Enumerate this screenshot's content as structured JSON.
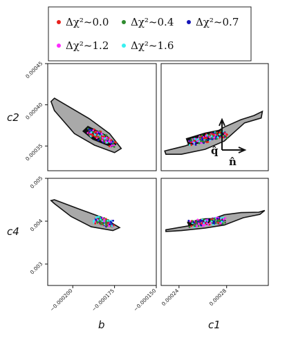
{
  "chart_data": {
    "type": "scatter",
    "legend": {
      "placement": "top",
      "entries": [
        {
          "label": "Δχ²~0.0",
          "color": "#e8211c"
        },
        {
          "label": "Δχ²~0.4",
          "color": "#2e8b2e"
        },
        {
          "label": "Δχ²~0.7",
          "color": "#1414b8"
        },
        {
          "label": "Δχ²~1.2",
          "color": "#ff2bff"
        },
        {
          "label": "Δχ²~1.6",
          "color": "#38f0f0"
        }
      ]
    },
    "axes": {
      "x_b": {
        "label": "b",
        "range": [
          -0.000215,
          -0.00015
        ],
        "ticks": [
          {
            "v": -0.0002,
            "t": "−0.000200"
          },
          {
            "v": -0.000175,
            "t": "−0.000175"
          },
          {
            "v": -0.00015,
            "t": "−0.000150"
          }
        ]
      },
      "x_c1": {
        "label": "c1",
        "range": [
          0.000225,
          0.000315
        ],
        "ticks": [
          {
            "v": 0.00024,
            "t": "0.00024"
          },
          {
            "v": 0.00028,
            "t": "0.00028"
          }
        ]
      },
      "y_c2": {
        "label": "c2",
        "range": [
          0.00032,
          0.00045
        ],
        "ticks": [
          {
            "v": 0.00035,
            "t": "0.00035"
          },
          {
            "v": 0.0004,
            "t": "0.00040"
          },
          {
            "v": 0.00045,
            "t": "0.00045"
          }
        ]
      },
      "y_c4": {
        "label": "c4",
        "range": [
          0.0025,
          0.005
        ],
        "ticks": [
          {
            "v": 0.003,
            "t": "0.003"
          },
          {
            "v": 0.004,
            "t": "0.004"
          },
          {
            "v": 0.005,
            "t": "0.005"
          }
        ]
      }
    },
    "panels": [
      {
        "id": "b_c2",
        "x": "x_b",
        "y": "y_c2",
        "outer": [
          [
            -0.000211,
            0.000408
          ],
          [
            -0.00019,
            0.000383
          ],
          [
            -0.000178,
            0.000365
          ],
          [
            -0.000171,
            0.000347
          ],
          [
            -0.000175,
            0.000342
          ],
          [
            -0.000187,
            0.000351
          ],
          [
            -0.000199,
            0.000365
          ],
          [
            -0.000211,
            0.000393
          ],
          [
            -0.000213,
            0.000404
          ]
        ],
        "inner": [
          [
            -0.000191,
            0.000374
          ],
          [
            -0.00018,
            0.000363
          ],
          [
            -0.000174,
            0.000352
          ],
          [
            -0.000177,
            0.000349
          ],
          [
            -0.000188,
            0.000358
          ],
          [
            -0.000194,
            0.000368
          ]
        ],
        "cloud": [
          [
            -0.00019,
            0.000368
          ],
          [
            -0.000186,
            0.000364
          ],
          [
            -0.000182,
            0.00036
          ],
          [
            -0.000179,
            0.000356
          ],
          [
            -0.000176,
            0.000352
          ]
        ]
      },
      {
        "id": "c1_c2",
        "x": "x_c1",
        "y": "y_c2",
        "outer": [
          [
            0.000228,
            0.000344
          ],
          [
            0.000245,
            0.00035
          ],
          [
            0.000262,
            0.000359
          ],
          [
            0.000278,
            0.000373
          ],
          [
            0.000292,
            0.000382
          ],
          [
            0.000303,
            0.000387
          ],
          [
            0.00031,
            0.000392
          ],
          [
            0.000309,
            0.000384
          ],
          [
            0.000295,
            0.000378
          ],
          [
            0.000278,
            0.000356
          ],
          [
            0.000262,
            0.000346
          ],
          [
            0.000242,
            0.00034
          ],
          [
            0.000229,
            0.00034
          ]
        ],
        "inner": [
          [
            0.000246,
            0.000359
          ],
          [
            0.000262,
            0.000366
          ],
          [
            0.000276,
            0.00037
          ],
          [
            0.000278,
            0.000364
          ],
          [
            0.000262,
            0.000355
          ],
          [
            0.000248,
            0.000351
          ]
        ],
        "cloud": [
          [
            0.00025,
            0.000354
          ],
          [
            0.00026,
            0.000358
          ],
          [
            0.00027,
            0.000362
          ],
          [
            0.000278,
            0.000364
          ]
        ],
        "arrows": [
          {
            "label": "q̂",
            "dir": "up"
          },
          {
            "label": "n̂",
            "dir": "right"
          }
        ]
      },
      {
        "id": "b_c4",
        "x": "x_b",
        "y": "y_c4",
        "outer": [
          [
            -0.000211,
            0.0045
          ],
          [
            -0.000196,
            0.00428
          ],
          [
            -0.000182,
            0.00408
          ],
          [
            -0.000172,
            0.00385
          ],
          [
            -0.000176,
            0.00378
          ],
          [
            -0.000189,
            0.00387
          ],
          [
            -0.000201,
            0.00411
          ],
          [
            -0.000211,
            0.00441
          ],
          [
            -0.000213,
            0.00448
          ]
        ],
        "inner": [
          [
            -0.000186,
            0.00406
          ],
          [
            -0.000178,
            0.00398
          ],
          [
            -0.000176,
            0.00393
          ],
          [
            -0.000181,
            0.00394
          ],
          [
            -0.000187,
            0.00401
          ]
        ],
        "cloud": [
          [
            -0.000186,
            0.00404
          ],
          [
            -0.000183,
            0.004
          ],
          [
            -0.00018,
            0.00397
          ],
          [
            -0.000177,
            0.00394
          ]
        ]
      },
      {
        "id": "c1_c4",
        "x": "x_c1",
        "y": "y_c4",
        "outer": [
          [
            0.000229,
            0.0038
          ],
          [
            0.00025,
            0.0039
          ],
          [
            0.000265,
            0.00402
          ],
          [
            0.000278,
            0.00415
          ],
          [
            0.000292,
            0.0042
          ],
          [
            0.000307,
            0.00421
          ],
          [
            0.000312,
            0.00425
          ],
          [
            0.000308,
            0.00416
          ],
          [
            0.000294,
            0.00408
          ],
          [
            0.000278,
            0.00391
          ],
          [
            0.000262,
            0.00384
          ],
          [
            0.000242,
            0.00378
          ],
          [
            0.000229,
            0.00376
          ]
        ],
        "inner": [
          [
            0.000247,
            0.00398
          ],
          [
            0.000262,
            0.00406
          ],
          [
            0.000276,
            0.00407
          ],
          [
            0.000279,
            0.00401
          ],
          [
            0.000262,
            0.00395
          ],
          [
            0.000248,
            0.00391
          ]
        ],
        "cloud": [
          [
            0.00025,
            0.00393
          ],
          [
            0.00026,
            0.00397
          ],
          [
            0.00027,
            0.004
          ],
          [
            0.000278,
            0.00401
          ]
        ]
      }
    ]
  }
}
